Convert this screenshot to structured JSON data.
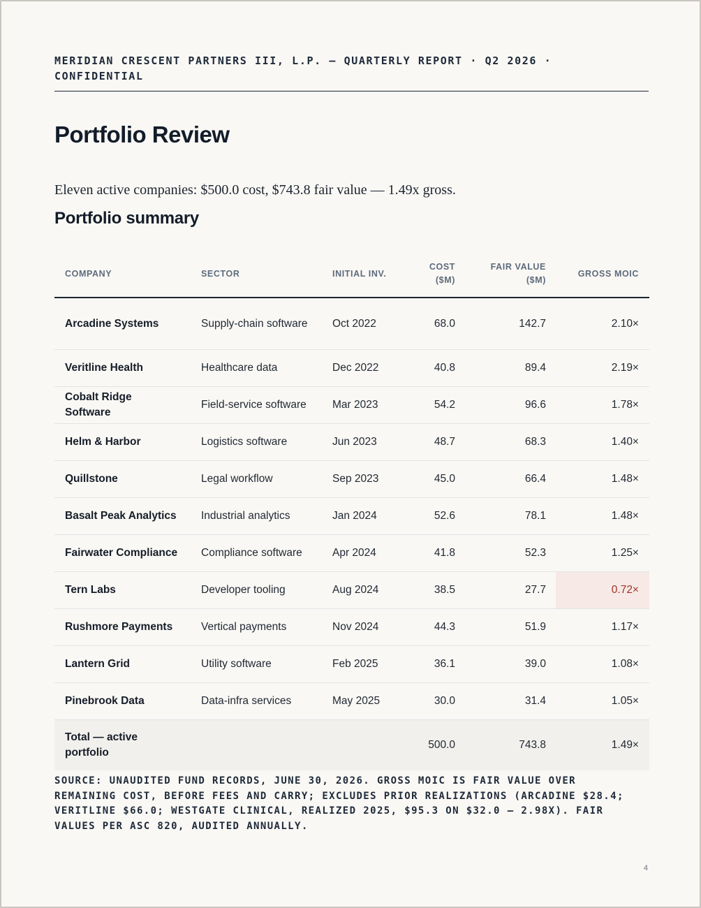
{
  "header": {
    "running_head": "MERIDIAN CRESCENT PARTNERS III, L.P. — QUARTERLY REPORT · Q2 2026 · CONFIDENTIAL"
  },
  "page_title": "Portfolio Review",
  "lede": "Eleven active companies: $500.0 cost, $743.8 fair value — 1.49x gross.",
  "section_title": "Portfolio summary",
  "table": {
    "headers": {
      "company": "COMPANY",
      "sector": "SECTOR",
      "initial_inv": "INITIAL INV.",
      "cost": "COST ($M)",
      "fair_value": "FAIR VALUE ($M)",
      "gross_moic": "GROSS MOIC"
    },
    "rows": [
      {
        "company": "Arcadine Systems",
        "sector": "Supply-chain software",
        "initial": "Oct 2022",
        "cost": "68.0",
        "fair_value": "142.7",
        "moic": "2.10×",
        "flagged": false
      },
      {
        "company": "Veritline Health",
        "sector": "Healthcare data",
        "initial": "Dec 2022",
        "cost": "40.8",
        "fair_value": "89.4",
        "moic": "2.19×",
        "flagged": false
      },
      {
        "company": "Cobalt Ridge Software",
        "sector": "Field-service software",
        "initial": "Mar 2023",
        "cost": "54.2",
        "fair_value": "96.6",
        "moic": "1.78×",
        "flagged": false
      },
      {
        "company": "Helm & Harbor",
        "sector": "Logistics software",
        "initial": "Jun 2023",
        "cost": "48.7",
        "fair_value": "68.3",
        "moic": "1.40×",
        "flagged": false
      },
      {
        "company": "Quillstone",
        "sector": "Legal workflow",
        "initial": "Sep 2023",
        "cost": "45.0",
        "fair_value": "66.4",
        "moic": "1.48×",
        "flagged": false
      },
      {
        "company": "Basalt Peak Analytics",
        "sector": "Industrial analytics",
        "initial": "Jan 2024",
        "cost": "52.6",
        "fair_value": "78.1",
        "moic": "1.48×",
        "flagged": false
      },
      {
        "company": "Fairwater Compliance",
        "sector": "Compliance software",
        "initial": "Apr 2024",
        "cost": "41.8",
        "fair_value": "52.3",
        "moic": "1.25×",
        "flagged": false
      },
      {
        "company": "Tern Labs",
        "sector": "Developer tooling",
        "initial": "Aug 2024",
        "cost": "38.5",
        "fair_value": "27.7",
        "moic": "0.72×",
        "flagged": true
      },
      {
        "company": "Rushmore Payments",
        "sector": "Vertical payments",
        "initial": "Nov 2024",
        "cost": "44.3",
        "fair_value": "51.9",
        "moic": "1.17×",
        "flagged": false
      },
      {
        "company": "Lantern Grid",
        "sector": "Utility software",
        "initial": "Feb 2025",
        "cost": "36.1",
        "fair_value": "39.0",
        "moic": "1.08×",
        "flagged": false
      },
      {
        "company": "Pinebrook Data",
        "sector": "Data-infra services",
        "initial": "May 2025",
        "cost": "30.0",
        "fair_value": "31.4",
        "moic": "1.05×",
        "flagged": false
      }
    ],
    "total": {
      "label": "Total — active portfolio",
      "cost": "500.0",
      "fair_value": "743.8",
      "moic": "1.49×"
    }
  },
  "source_note": "Source: unaudited fund records, June 30, 2026. Gross MOIC is fair value over remaining cost, before fees and carry; excludes prior realizations (Arcadine $28.4; Veritline $66.0; Westgate Clinical, realized 2025, $95.3 on $32.0 — 2.98x). Fair values per ASC 820, audited annually.",
  "page_number": "4",
  "colors": {
    "flag_background": "#f7e9e5",
    "flag_text": "#a0322b",
    "total_background": "#f2f0ec"
  }
}
